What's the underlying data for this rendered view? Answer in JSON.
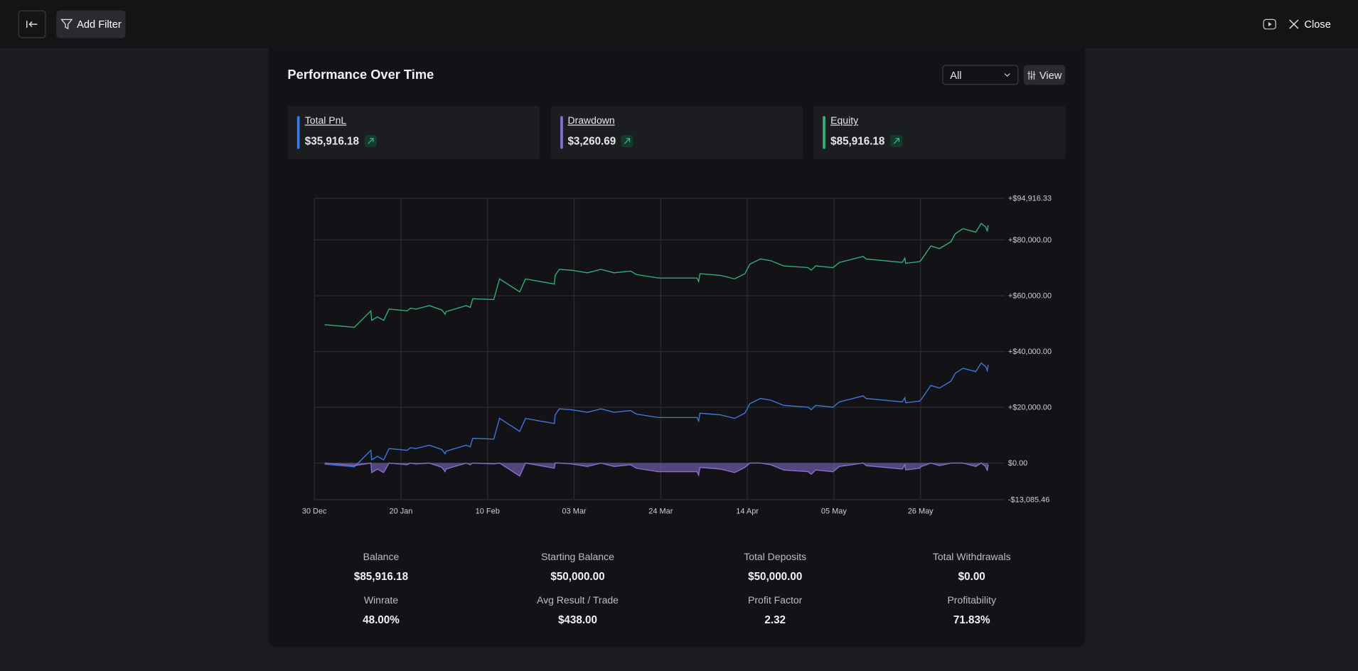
{
  "header": {
    "button": "Add Filter",
    "close": "Close"
  },
  "panel": {
    "title": "Performance Over Time",
    "select": "All",
    "view": "View"
  },
  "cards": [
    {
      "value": "$35,916.18"
    },
    {
      "value": "$3,260.69"
    },
    {
      "value": "$85,916.18"
    }
  ],
  "stats": [
    {
      "label": "Balance",
      "value": "$85,916.18"
    },
    {
      "label": "Starting Balance",
      "value": "$50,000.00"
    },
    {
      "label": "Total Deposits",
      "value": "$50,000.00"
    },
    {
      "label": "Total Withdrawals",
      "value": "$0.00"
    },
    {
      "label": "Winrate",
      "value": "48.00%"
    },
    {
      "label": "Avg Result / Trade",
      "value": "$438.00"
    },
    {
      "label": "Profit Factor",
      "value": "2.32"
    },
    {
      "label": "Profitability",
      "value": "71.83%"
    }
  ],
  "chart_data": {
    "type": "line",
    "grid": true,
    "x": [
      2.5,
      9.7,
      13.7,
      13.9,
      15.3,
      16.8,
      18.1,
      22.5,
      23.3,
      24.6,
      27.9,
      30.9,
      31.7,
      31.9,
      36.8,
      37.8,
      38.4,
      43.5,
      44.9,
      49.8,
      51.2,
      58.2,
      58.4,
      59.4,
      62.4,
      66.2,
      69.5,
      72.7,
      76.7,
      78.1,
      83.4,
      92.8,
      93.2,
      93.5,
      98.5,
      101.9,
      104.4,
      105.6,
      108.2,
      110.7,
      113.8,
      119.7,
      120.5,
      121.6,
      125.8,
      127.3,
      133.1,
      133.8,
      142.6,
      143.2,
      143.4,
      146.8,
      147.2,
      149.5,
      151.6,
      154.4,
      155.4,
      157.3,
      160.4,
      161.7,
      162.8,
      163.2,
      163.4
    ],
    "xlim": [
      0,
      167.4
    ],
    "xticks": [
      {
        "value": 0,
        "label": "30 Dec"
      },
      {
        "value": 21,
        "label": "20 Jan"
      },
      {
        "value": 42,
        "label": "10 Feb"
      },
      {
        "value": 63,
        "label": "03 Mar"
      },
      {
        "value": 84,
        "label": "24 Mar"
      },
      {
        "value": 105,
        "label": "14 Apr"
      },
      {
        "value": 126,
        "label": "05 May"
      },
      {
        "value": 147,
        "label": "26 May"
      }
    ],
    "ylim": [
      -13085.46,
      94916.33
    ],
    "yticks": [
      {
        "value": 94916.33,
        "label": "+$94,916.33"
      },
      {
        "value": 80000,
        "label": "+$80,000.00"
      },
      {
        "value": 60000,
        "label": "+$60,000.00"
      },
      {
        "value": 40000,
        "label": "+$40,000.00"
      },
      {
        "value": 20000,
        "label": "+$20,000.00"
      },
      {
        "value": 0,
        "label": "$0.00"
      },
      {
        "value": -13085.46,
        "label": "-$13,085.46"
      }
    ],
    "series": [
      {
        "name": "Total PnL",
        "color": "#3b7ddd",
        "values": [
          -390,
          -1330,
          4560,
          1150,
          2390,
          1150,
          5180,
          4560,
          5490,
          5180,
          6420,
          4870,
          3320,
          4250,
          6420,
          5800,
          8900,
          8590,
          16030,
          11380,
          16030,
          14170,
          17270,
          19440,
          19130,
          18200,
          19440,
          18200,
          18820,
          17580,
          16340,
          16340,
          15100,
          17890,
          17270,
          16030,
          17890,
          21300,
          23160,
          22540,
          20680,
          20060,
          19130,
          20680,
          20060,
          21920,
          24090,
          23160,
          21920,
          23470,
          21610,
          22230,
          22850,
          27810,
          26880,
          29360,
          32150,
          34010,
          32770,
          35870,
          34630,
          33080,
          35250
        ]
      },
      {
        "name": "Drawdown",
        "color": "#8b6fd0",
        "area": true,
        "values": [
          0,
          -930,
          0,
          -3410,
          -2170,
          -3410,
          0,
          -620,
          0,
          -310,
          0,
          -1550,
          -3100,
          -2170,
          0,
          -620,
          0,
          -310,
          0,
          -4650,
          0,
          -1860,
          0,
          0,
          -310,
          -1240,
          0,
          -1240,
          -620,
          -1860,
          -3100,
          -3100,
          -4340,
          -1550,
          -2170,
          -3410,
          -1550,
          0,
          0,
          -620,
          -2480,
          -3100,
          -4030,
          -2480,
          -3100,
          -1240,
          0,
          -930,
          -2170,
          -620,
          -2480,
          -1860,
          -1240,
          0,
          -930,
          0,
          0,
          0,
          -1240,
          0,
          -1240,
          -2790,
          -620
        ]
      },
      {
        "name": "Equity",
        "color": "#34b27b",
        "values": [
          49610,
          48670,
          54560,
          51150,
          52390,
          51150,
          55180,
          54560,
          55490,
          55180,
          56420,
          54870,
          53320,
          54250,
          56420,
          55800,
          58900,
          58590,
          66030,
          61380,
          66030,
          64170,
          67270,
          69440,
          69130,
          68200,
          69440,
          68200,
          68820,
          67580,
          66340,
          66340,
          65100,
          67890,
          67270,
          66030,
          67890,
          71300,
          73160,
          72540,
          70680,
          70060,
          69130,
          70680,
          70060,
          71920,
          74090,
          73160,
          71920,
          73470,
          71610,
          72230,
          72850,
          77810,
          76880,
          79360,
          82150,
          84010,
          82770,
          85870,
          84630,
          83080,
          85250
        ]
      }
    ]
  }
}
